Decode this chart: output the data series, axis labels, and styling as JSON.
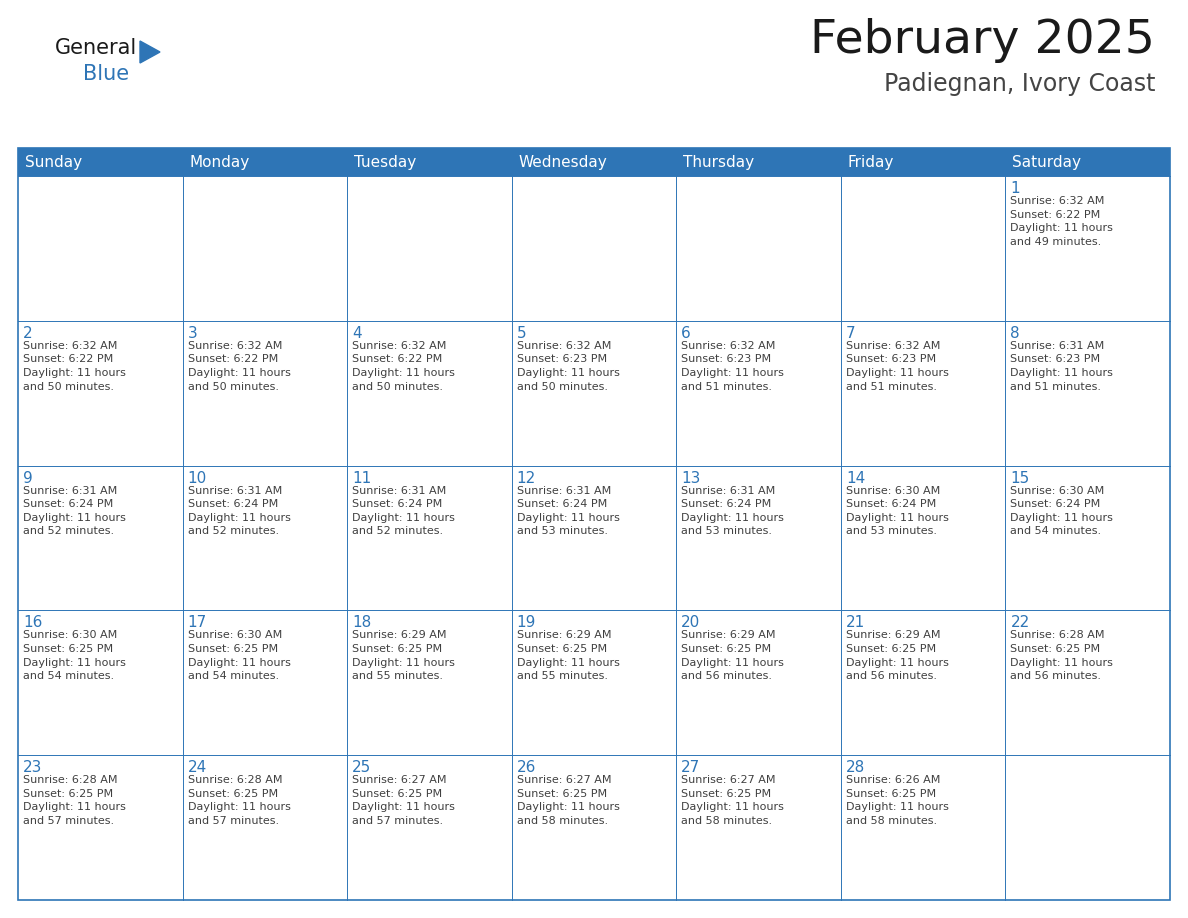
{
  "title": "February 2025",
  "subtitle": "Padiegnan, Ivory Coast",
  "header_color": "#2E75B6",
  "header_text_color": "#FFFFFF",
  "cell_border_color": "#2E75B6",
  "day_number_color": "#2E75B6",
  "cell_text_color": "#404040",
  "background_color": "#FFFFFF",
  "last_row_bg": "#F2F2F2",
  "days_of_week": [
    "Sunday",
    "Monday",
    "Tuesday",
    "Wednesday",
    "Thursday",
    "Friday",
    "Saturday"
  ],
  "weeks": [
    [
      {
        "day": 0,
        "text": ""
      },
      {
        "day": 0,
        "text": ""
      },
      {
        "day": 0,
        "text": ""
      },
      {
        "day": 0,
        "text": ""
      },
      {
        "day": 0,
        "text": ""
      },
      {
        "day": 0,
        "text": ""
      },
      {
        "day": 1,
        "text": "Sunrise: 6:32 AM\nSunset: 6:22 PM\nDaylight: 11 hours\nand 49 minutes."
      }
    ],
    [
      {
        "day": 2,
        "text": "Sunrise: 6:32 AM\nSunset: 6:22 PM\nDaylight: 11 hours\nand 50 minutes."
      },
      {
        "day": 3,
        "text": "Sunrise: 6:32 AM\nSunset: 6:22 PM\nDaylight: 11 hours\nand 50 minutes."
      },
      {
        "day": 4,
        "text": "Sunrise: 6:32 AM\nSunset: 6:22 PM\nDaylight: 11 hours\nand 50 minutes."
      },
      {
        "day": 5,
        "text": "Sunrise: 6:32 AM\nSunset: 6:23 PM\nDaylight: 11 hours\nand 50 minutes."
      },
      {
        "day": 6,
        "text": "Sunrise: 6:32 AM\nSunset: 6:23 PM\nDaylight: 11 hours\nand 51 minutes."
      },
      {
        "day": 7,
        "text": "Sunrise: 6:32 AM\nSunset: 6:23 PM\nDaylight: 11 hours\nand 51 minutes."
      },
      {
        "day": 8,
        "text": "Sunrise: 6:31 AM\nSunset: 6:23 PM\nDaylight: 11 hours\nand 51 minutes."
      }
    ],
    [
      {
        "day": 9,
        "text": "Sunrise: 6:31 AM\nSunset: 6:24 PM\nDaylight: 11 hours\nand 52 minutes."
      },
      {
        "day": 10,
        "text": "Sunrise: 6:31 AM\nSunset: 6:24 PM\nDaylight: 11 hours\nand 52 minutes."
      },
      {
        "day": 11,
        "text": "Sunrise: 6:31 AM\nSunset: 6:24 PM\nDaylight: 11 hours\nand 52 minutes."
      },
      {
        "day": 12,
        "text": "Sunrise: 6:31 AM\nSunset: 6:24 PM\nDaylight: 11 hours\nand 53 minutes."
      },
      {
        "day": 13,
        "text": "Sunrise: 6:31 AM\nSunset: 6:24 PM\nDaylight: 11 hours\nand 53 minutes."
      },
      {
        "day": 14,
        "text": "Sunrise: 6:30 AM\nSunset: 6:24 PM\nDaylight: 11 hours\nand 53 minutes."
      },
      {
        "day": 15,
        "text": "Sunrise: 6:30 AM\nSunset: 6:24 PM\nDaylight: 11 hours\nand 54 minutes."
      }
    ],
    [
      {
        "day": 16,
        "text": "Sunrise: 6:30 AM\nSunset: 6:25 PM\nDaylight: 11 hours\nand 54 minutes."
      },
      {
        "day": 17,
        "text": "Sunrise: 6:30 AM\nSunset: 6:25 PM\nDaylight: 11 hours\nand 54 minutes."
      },
      {
        "day": 18,
        "text": "Sunrise: 6:29 AM\nSunset: 6:25 PM\nDaylight: 11 hours\nand 55 minutes."
      },
      {
        "day": 19,
        "text": "Sunrise: 6:29 AM\nSunset: 6:25 PM\nDaylight: 11 hours\nand 55 minutes."
      },
      {
        "day": 20,
        "text": "Sunrise: 6:29 AM\nSunset: 6:25 PM\nDaylight: 11 hours\nand 56 minutes."
      },
      {
        "day": 21,
        "text": "Sunrise: 6:29 AM\nSunset: 6:25 PM\nDaylight: 11 hours\nand 56 minutes."
      },
      {
        "day": 22,
        "text": "Sunrise: 6:28 AM\nSunset: 6:25 PM\nDaylight: 11 hours\nand 56 minutes."
      }
    ],
    [
      {
        "day": 23,
        "text": "Sunrise: 6:28 AM\nSunset: 6:25 PM\nDaylight: 11 hours\nand 57 minutes."
      },
      {
        "day": 24,
        "text": "Sunrise: 6:28 AM\nSunset: 6:25 PM\nDaylight: 11 hours\nand 57 minutes."
      },
      {
        "day": 25,
        "text": "Sunrise: 6:27 AM\nSunset: 6:25 PM\nDaylight: 11 hours\nand 57 minutes."
      },
      {
        "day": 26,
        "text": "Sunrise: 6:27 AM\nSunset: 6:25 PM\nDaylight: 11 hours\nand 58 minutes."
      },
      {
        "day": 27,
        "text": "Sunrise: 6:27 AM\nSunset: 6:25 PM\nDaylight: 11 hours\nand 58 minutes."
      },
      {
        "day": 28,
        "text": "Sunrise: 6:26 AM\nSunset: 6:25 PM\nDaylight: 11 hours\nand 58 minutes."
      },
      {
        "day": 0,
        "text": ""
      }
    ]
  ]
}
